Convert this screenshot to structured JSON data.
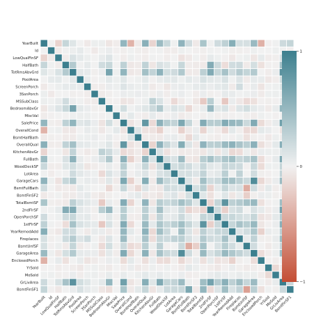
{
  "chart_data": {
    "type": "heatmap",
    "title": "",
    "xlabel": "",
    "ylabel": "",
    "labels": [
      "YearBuilt",
      "Id",
      "LowQualFinSF",
      "HalfBath",
      "TotRmsAbvGrd",
      "PoolArea",
      "ScreenPorch",
      "3SsnPorch",
      "MSSubClass",
      "BedroomAbvGr",
      "MiscVal",
      "SalePrice",
      "OverallCond",
      "BsmtHalfBath",
      "OverallQual",
      "KitchenAbvGr",
      "FullBath",
      "WoodDeckSF",
      "LotArea",
      "GarageCars",
      "BsmtFullBath",
      "BsmtFinSF2",
      "TotalBsmtSF",
      "2ndFlrSF",
      "OpenPorchSF",
      "1stFlrSF",
      "YearRemodAdd",
      "Fireplaces",
      "BsmtUnfSF",
      "GarageArea",
      "EnclosedPorch",
      "YrSold",
      "MoSold",
      "GrLivArea",
      "BsmtFinSF1"
    ],
    "vmin": -1,
    "vmax": 1,
    "mask": "none",
    "colormap": {
      "negative": "#c44e34",
      "center": "#f1f1f1",
      "positive": "#3c7f8e"
    },
    "colorbar": {
      "ticks": [
        "1",
        "0",
        "−1"
      ],
      "location": "right"
    },
    "cell_border_color": "#ffffff",
    "values": [
      [
        1.0,
        0.0,
        -0.18,
        0.24,
        0.1,
        0.0,
        -0.05,
        0.03,
        0.03,
        -0.07,
        -0.03,
        0.52,
        -0.38,
        -0.04,
        0.57,
        -0.17,
        0.47,
        0.22,
        0.01,
        0.54,
        0.19,
        -0.05,
        0.39,
        0.01,
        0.19,
        0.28,
        0.59,
        0.15,
        0.15,
        0.48,
        -0.39,
        -0.01,
        0.01,
        0.2,
        0.25
      ],
      [
        0.0,
        1.0,
        -0.04,
        0.01,
        0.03,
        0.06,
        0.0,
        -0.05,
        0.01,
        0.04,
        -0.01,
        -0.02,
        0.01,
        -0.02,
        -0.03,
        0.0,
        0.01,
        -0.03,
        -0.03,
        0.02,
        0.0,
        -0.01,
        -0.02,
        0.01,
        0.0,
        0.01,
        -0.02,
        -0.02,
        -0.01,
        0.02,
        0.0,
        0.0,
        0.02,
        0.01,
        -0.01
      ],
      [
        -0.18,
        -0.04,
        1.0,
        -0.03,
        0.13,
        0.07,
        0.03,
        -0.0,
        0.05,
        0.11,
        -0.0,
        -0.03,
        0.03,
        -0.01,
        -0.03,
        0.01,
        -0.0,
        -0.03,
        0.0,
        -0.09,
        -0.05,
        0.01,
        -0.03,
        0.06,
        0.02,
        -0.01,
        -0.06,
        0.01,
        0.03,
        -0.07,
        0.06,
        -0.03,
        -0.02,
        0.13,
        -0.06
      ],
      [
        0.24,
        0.01,
        -0.03,
        1.0,
        0.34,
        0.01,
        0.06,
        -0.0,
        0.18,
        0.23,
        0.0,
        0.28,
        -0.06,
        -0.04,
        0.27,
        -0.07,
        0.14,
        0.1,
        0.01,
        0.23,
        -0.03,
        -0.04,
        -0.05,
        0.61,
        0.2,
        -0.12,
        0.18,
        0.2,
        -0.04,
        0.16,
        -0.1,
        -0.01,
        -0.01,
        0.41,
        0.0
      ],
      [
        0.1,
        0.03,
        0.13,
        0.34,
        1.0,
        0.08,
        0.06,
        -0.02,
        0.04,
        0.68,
        0.02,
        0.53,
        -0.06,
        -0.04,
        0.43,
        0.26,
        0.55,
        0.17,
        0.19,
        0.36,
        -0.05,
        -0.04,
        0.29,
        0.62,
        0.23,
        0.41,
        0.19,
        0.33,
        0.25,
        0.34,
        0.0,
        -0.03,
        0.04,
        0.83,
        0.04
      ],
      [
        0.0,
        0.06,
        0.07,
        0.01,
        0.08,
        1.0,
        0.05,
        -0.01,
        0.01,
        0.07,
        0.03,
        0.09,
        -0.0,
        0.02,
        0.07,
        -0.01,
        0.05,
        0.07,
        0.08,
        0.02,
        0.07,
        0.04,
        0.13,
        0.08,
        0.06,
        0.13,
        0.01,
        0.11,
        -0.04,
        0.06,
        0.05,
        -0.06,
        -0.03,
        0.17,
        0.14
      ],
      [
        -0.05,
        0.0,
        0.03,
        0.06,
        0.06,
        0.05,
        1.0,
        -0.03,
        -0.03,
        0.04,
        0.03,
        0.11,
        0.05,
        0.03,
        0.06,
        -0.05,
        -0.01,
        -0.07,
        0.04,
        0.05,
        0.02,
        0.06,
        0.08,
        0.04,
        0.07,
        0.09,
        -0.04,
        0.18,
        -0.01,
        0.05,
        -0.08,
        0.01,
        0.02,
        0.1,
        0.06
      ],
      [
        0.03,
        -0.05,
        -0.0,
        -0.0,
        -0.02,
        -0.01,
        -0.03,
        1.0,
        -0.04,
        -0.02,
        0.0,
        0.04,
        0.03,
        0.04,
        0.03,
        -0.02,
        0.04,
        -0.03,
        0.02,
        0.04,
        0.0,
        -0.03,
        0.04,
        -0.02,
        -0.01,
        0.06,
        0.05,
        0.01,
        0.02,
        0.04,
        -0.04,
        0.02,
        0.03,
        0.02,
        0.03
      ],
      [
        0.03,
        0.01,
        0.05,
        0.18,
        0.04,
        0.01,
        -0.03,
        -0.04,
        1.0,
        -0.02,
        -0.01,
        -0.08,
        -0.06,
        0.0,
        0.03,
        0.28,
        0.13,
        -0.01,
        -0.14,
        -0.04,
        0.0,
        -0.07,
        -0.24,
        0.31,
        -0.0,
        -0.25,
        0.04,
        -0.06,
        -0.14,
        -0.1,
        -0.01,
        -0.02,
        -0.01,
        0.07,
        -0.07
      ],
      [
        -0.07,
        0.04,
        0.11,
        0.23,
        0.68,
        0.07,
        0.04,
        -0.02,
        -0.02,
        1.0,
        0.01,
        0.17,
        0.01,
        0.05,
        0.1,
        0.2,
        0.36,
        0.05,
        0.12,
        0.09,
        -0.15,
        -0.02,
        0.05,
        0.5,
        0.09,
        0.13,
        -0.04,
        0.11,
        0.17,
        0.07,
        0.04,
        -0.04,
        0.05,
        0.52,
        -0.11
      ],
      [
        -0.03,
        -0.01,
        -0.0,
        0.0,
        0.02,
        0.03,
        0.03,
        0.0,
        -0.01,
        0.01,
        1.0,
        -0.02,
        0.07,
        -0.01,
        -0.03,
        0.06,
        -0.01,
        -0.01,
        0.04,
        -0.04,
        -0.02,
        0.0,
        -0.02,
        0.02,
        -0.02,
        -0.02,
        -0.01,
        0.0,
        -0.02,
        -0.03,
        0.02,
        0.0,
        -0.01,
        -0.0,
        0.0
      ],
      [
        0.52,
        -0.02,
        -0.03,
        0.28,
        0.53,
        0.09,
        0.11,
        0.04,
        -0.08,
        0.17,
        -0.02,
        1.0,
        -0.08,
        -0.02,
        0.79,
        -0.14,
        0.56,
        0.32,
        0.26,
        0.64,
        0.23,
        -0.01,
        0.61,
        0.32,
        0.32,
        0.61,
        0.51,
        0.47,
        0.21,
        0.62,
        -0.13,
        -0.03,
        0.05,
        0.71,
        0.39
      ],
      [
        -0.38,
        0.01,
        0.03,
        -0.06,
        -0.06,
        -0.0,
        0.05,
        0.03,
        -0.06,
        0.01,
        0.07,
        -0.08,
        1.0,
        0.12,
        -0.09,
        -0.09,
        -0.19,
        -0.0,
        -0.01,
        -0.19,
        -0.05,
        0.04,
        -0.17,
        0.03,
        -0.03,
        -0.14,
        0.07,
        -0.02,
        -0.14,
        -0.15,
        0.07,
        0.04,
        -0.0,
        -0.08,
        -0.05
      ],
      [
        -0.04,
        -0.02,
        -0.01,
        -0.04,
        -0.04,
        0.02,
        0.03,
        0.04,
        0.0,
        0.05,
        -0.01,
        -0.02,
        0.12,
        1.0,
        -0.04,
        -0.04,
        -0.05,
        0.04,
        0.05,
        -0.02,
        -0.15,
        0.07,
        0.01,
        -0.02,
        -0.03,
        0.0,
        -0.01,
        0.03,
        -0.1,
        -0.02,
        -0.01,
        -0.05,
        0.03,
        -0.02,
        0.07
      ],
      [
        0.57,
        -0.03,
        -0.03,
        0.27,
        0.43,
        0.07,
        0.06,
        0.03,
        0.03,
        0.1,
        -0.03,
        0.79,
        -0.09,
        -0.04,
        1.0,
        -0.18,
        0.55,
        0.24,
        0.11,
        0.6,
        0.11,
        -0.06,
        0.54,
        0.3,
        0.31,
        0.48,
        0.55,
        0.4,
        0.31,
        0.56,
        -0.11,
        -0.03,
        0.07,
        0.59,
        0.24
      ],
      [
        -0.17,
        0.0,
        0.01,
        -0.07,
        0.26,
        -0.01,
        -0.05,
        -0.02,
        0.28,
        0.2,
        0.06,
        -0.14,
        -0.09,
        -0.04,
        -0.18,
        1.0,
        0.13,
        -0.09,
        -0.02,
        -0.05,
        -0.04,
        -0.04,
        -0.07,
        0.06,
        -0.07,
        0.07,
        -0.15,
        -0.12,
        0.03,
        -0.06,
        0.04,
        0.03,
        0.03,
        0.1,
        -0.08
      ],
      [
        0.47,
        0.01,
        -0.0,
        0.14,
        0.55,
        0.05,
        -0.01,
        0.04,
        0.13,
        0.36,
        -0.01,
        0.56,
        -0.19,
        -0.05,
        0.55,
        0.13,
        1.0,
        0.19,
        0.13,
        0.47,
        -0.06,
        -0.08,
        0.32,
        0.42,
        0.26,
        0.38,
        0.44,
        0.24,
        0.29,
        0.41,
        -0.12,
        -0.01,
        0.06,
        0.63,
        0.06
      ],
      [
        0.22,
        -0.03,
        -0.03,
        0.1,
        0.17,
        0.07,
        -0.07,
        -0.03,
        -0.01,
        0.05,
        -0.01,
        0.32,
        -0.0,
        0.04,
        0.24,
        -0.09,
        0.19,
        1.0,
        0.17,
        0.23,
        0.18,
        0.07,
        0.23,
        0.09,
        0.06,
        0.24,
        0.21,
        0.2,
        -0.01,
        0.22,
        -0.13,
        0.02,
        0.02,
        0.25,
        0.2
      ],
      [
        0.01,
        -0.03,
        0.0,
        0.01,
        0.19,
        0.08,
        0.04,
        0.02,
        -0.14,
        0.12,
        0.04,
        0.26,
        -0.01,
        0.05,
        0.11,
        -0.02,
        0.13,
        0.17,
        1.0,
        0.15,
        0.16,
        0.11,
        0.26,
        0.05,
        0.08,
        0.3,
        0.01,
        0.27,
        -0.0,
        0.18,
        -0.02,
        -0.01,
        0.0,
        0.26,
        0.21
      ],
      [
        0.54,
        0.02,
        -0.09,
        0.23,
        0.36,
        0.02,
        0.05,
        0.04,
        -0.04,
        0.09,
        -0.04,
        0.64,
        -0.19,
        -0.02,
        0.6,
        -0.05,
        0.47,
        0.23,
        0.15,
        1.0,
        0.13,
        -0.04,
        0.43,
        0.18,
        0.21,
        0.44,
        0.42,
        0.3,
        0.21,
        0.88,
        -0.15,
        -0.04,
        0.04,
        0.47,
        0.22
      ],
      [
        0.19,
        0.0,
        -0.05,
        -0.03,
        -0.05,
        0.07,
        0.02,
        0.0,
        0.0,
        -0.15,
        -0.02,
        0.23,
        -0.05,
        -0.15,
        0.11,
        -0.04,
        -0.06,
        0.18,
        0.16,
        0.13,
        1.0,
        0.16,
        0.31,
        -0.17,
        0.07,
        0.24,
        0.12,
        0.14,
        -0.42,
        0.18,
        -0.05,
        0.07,
        -0.03,
        0.03,
        0.65
      ],
      [
        -0.05,
        -0.01,
        0.01,
        -0.04,
        -0.04,
        0.04,
        0.06,
        -0.03,
        -0.07,
        -0.02,
        0.0,
        -0.01,
        0.04,
        0.07,
        -0.06,
        -0.04,
        -0.08,
        0.07,
        0.11,
        -0.04,
        0.16,
        1.0,
        0.1,
        -0.1,
        0.0,
        0.1,
        -0.07,
        0.05,
        -0.21,
        -0.02,
        0.04,
        0.03,
        -0.02,
        -0.01,
        -0.05
      ],
      [
        0.39,
        -0.02,
        -0.03,
        -0.05,
        0.29,
        0.13,
        0.08,
        0.04,
        -0.24,
        0.05,
        -0.02,
        0.61,
        -0.17,
        0.01,
        0.54,
        -0.07,
        0.32,
        0.23,
        0.26,
        0.43,
        0.31,
        0.1,
        1.0,
        -0.17,
        0.25,
        0.82,
        0.29,
        0.34,
        0.42,
        0.49,
        -0.1,
        -0.01,
        0.01,
        0.45,
        0.52
      ],
      [
        0.01,
        0.01,
        0.06,
        0.61,
        0.62,
        0.08,
        0.04,
        -0.02,
        0.31,
        0.5,
        0.02,
        0.32,
        0.03,
        -0.02,
        0.3,
        0.06,
        0.42,
        0.09,
        0.05,
        0.18,
        -0.17,
        -0.1,
        -0.17,
        1.0,
        0.21,
        -0.2,
        0.14,
        0.19,
        0.0,
        0.14,
        0.06,
        -0.03,
        0.04,
        0.69,
        -0.14
      ],
      [
        0.19,
        0.0,
        0.02,
        0.2,
        0.23,
        0.06,
        0.07,
        -0.01,
        -0.0,
        0.09,
        -0.02,
        0.32,
        -0.03,
        -0.03,
        0.31,
        -0.07,
        0.26,
        0.06,
        0.08,
        0.21,
        0.07,
        0.0,
        0.25,
        0.21,
        1.0,
        0.21,
        0.23,
        0.17,
        0.13,
        0.24,
        -0.09,
        -0.06,
        0.07,
        0.33,
        0.11
      ],
      [
        0.28,
        0.01,
        -0.01,
        -0.12,
        0.41,
        0.13,
        0.09,
        0.06,
        -0.25,
        0.13,
        -0.02,
        0.61,
        -0.14,
        0.0,
        0.48,
        0.07,
        0.38,
        0.24,
        0.3,
        0.44,
        0.24,
        0.1,
        0.82,
        -0.2,
        0.21,
        1.0,
        0.24,
        0.41,
        0.32,
        0.49,
        -0.07,
        -0.01,
        0.04,
        0.57,
        0.45
      ],
      [
        0.59,
        -0.02,
        -0.06,
        0.18,
        0.19,
        0.01,
        -0.04,
        0.05,
        0.04,
        -0.04,
        -0.01,
        0.51,
        0.07,
        -0.01,
        0.55,
        -0.15,
        0.44,
        0.21,
        0.01,
        0.42,
        0.12,
        -0.07,
        0.29,
        0.14,
        0.23,
        0.24,
        1.0,
        0.11,
        0.18,
        0.37,
        -0.19,
        0.04,
        0.02,
        0.29,
        0.13
      ],
      [
        0.15,
        -0.02,
        0.01,
        0.2,
        0.33,
        0.11,
        0.18,
        0.01,
        -0.06,
        0.11,
        0.0,
        0.47,
        -0.02,
        0.03,
        0.4,
        -0.12,
        0.24,
        0.2,
        0.27,
        0.3,
        0.14,
        0.05,
        0.34,
        0.19,
        0.17,
        0.41,
        0.11,
        1.0,
        0.05,
        0.27,
        -0.02,
        -0.02,
        0.05,
        0.46,
        0.26
      ],
      [
        0.15,
        -0.01,
        0.03,
        -0.04,
        0.25,
        -0.04,
        -0.01,
        0.02,
        -0.14,
        0.17,
        -0.02,
        0.21,
        -0.14,
        -0.1,
        0.31,
        0.03,
        0.29,
        -0.01,
        -0.0,
        0.21,
        -0.42,
        -0.21,
        0.42,
        0.0,
        0.13,
        0.32,
        0.18,
        0.05,
        1.0,
        0.18,
        -0.0,
        -0.04,
        0.03,
        0.24,
        -0.5
      ],
      [
        0.48,
        0.02,
        -0.07,
        0.16,
        0.34,
        0.06,
        0.05,
        0.04,
        -0.1,
        0.07,
        -0.03,
        0.62,
        -0.15,
        -0.02,
        0.56,
        -0.06,
        0.41,
        0.22,
        0.18,
        0.88,
        0.18,
        -0.02,
        0.49,
        0.14,
        0.24,
        0.49,
        0.37,
        0.27,
        0.18,
        1.0,
        -0.12,
        -0.03,
        0.03,
        0.47,
        0.3
      ],
      [
        -0.39,
        0.0,
        0.06,
        -0.1,
        0.0,
        0.05,
        -0.08,
        -0.04,
        -0.01,
        0.04,
        0.02,
        -0.13,
        0.07,
        -0.01,
        -0.11,
        0.04,
        -0.12,
        -0.13,
        -0.02,
        -0.15,
        -0.05,
        0.04,
        -0.1,
        0.06,
        -0.09,
        -0.07,
        -0.19,
        -0.02,
        -0.0,
        -0.12,
        1.0,
        -0.01,
        -0.03,
        0.01,
        -0.1
      ],
      [
        -0.01,
        0.0,
        -0.03,
        -0.01,
        -0.03,
        -0.06,
        0.01,
        0.02,
        -0.02,
        -0.04,
        0.0,
        -0.03,
        0.04,
        -0.05,
        -0.03,
        0.03,
        -0.01,
        0.02,
        -0.01,
        -0.04,
        0.07,
        0.03,
        -0.01,
        -0.03,
        -0.06,
        -0.01,
        0.04,
        -0.02,
        -0.04,
        -0.03,
        -0.01,
        1.0,
        -0.15,
        -0.04,
        0.01
      ],
      [
        0.01,
        0.02,
        -0.02,
        -0.01,
        0.04,
        -0.03,
        0.02,
        0.03,
        -0.01,
        0.05,
        -0.01,
        0.05,
        -0.0,
        0.03,
        0.07,
        0.03,
        0.06,
        0.02,
        0.0,
        0.04,
        -0.03,
        -0.02,
        0.01,
        0.04,
        0.07,
        0.04,
        0.02,
        0.05,
        0.03,
        0.03,
        -0.03,
        -0.15,
        1.0,
        0.05,
        -0.02
      ],
      [
        0.2,
        0.01,
        0.13,
        0.41,
        0.83,
        0.17,
        0.1,
        0.02,
        0.07,
        0.52,
        -0.0,
        0.71,
        -0.08,
        -0.02,
        0.59,
        0.1,
        0.63,
        0.25,
        0.26,
        0.47,
        0.03,
        -0.01,
        0.45,
        0.69,
        0.33,
        0.57,
        0.29,
        0.46,
        0.24,
        0.47,
        0.01,
        -0.04,
        0.05,
        1.0,
        0.21
      ],
      [
        0.25,
        -0.01,
        -0.06,
        0.0,
        0.04,
        0.14,
        0.06,
        0.03,
        -0.07,
        -0.11,
        0.0,
        0.39,
        -0.05,
        0.07,
        0.24,
        -0.08,
        0.06,
        0.2,
        0.21,
        0.22,
        0.65,
        -0.05,
        0.52,
        -0.14,
        0.11,
        0.45,
        0.13,
        0.26,
        -0.5,
        0.3,
        -0.1,
        0.01,
        -0.02,
        0.21,
        1.0
      ]
    ]
  }
}
